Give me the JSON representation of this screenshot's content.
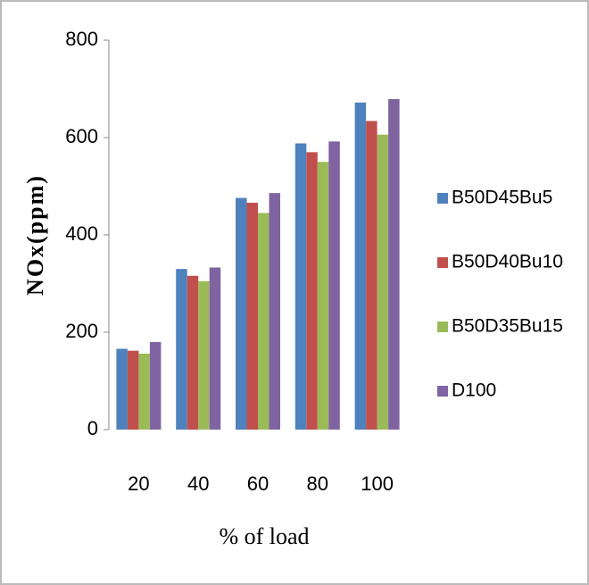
{
  "chart_data": {
    "type": "bar",
    "x_label": "% of load",
    "y_label": "NOx(ppm)",
    "categories": [
      "20",
      "40",
      "60",
      "80",
      "100"
    ],
    "series": [
      {
        "name": "B50D45Bu5",
        "color": "#4f81bd",
        "values": [
          166,
          330,
          476,
          588,
          672
        ]
      },
      {
        "name": "B50D40Bu10",
        "color": "#c0504d",
        "values": [
          162,
          316,
          466,
          570,
          634
        ]
      },
      {
        "name": "B50D35Bu15",
        "color": "#9bbb59",
        "values": [
          156,
          305,
          445,
          550,
          606
        ]
      },
      {
        "name": "D100",
        "color": "#8064a2",
        "values": [
          180,
          333,
          486,
          592,
          679
        ]
      }
    ],
    "ylim": [
      0,
      800
    ],
    "yticks": [
      0,
      200,
      400,
      600,
      800
    ],
    "legend": "right"
  }
}
